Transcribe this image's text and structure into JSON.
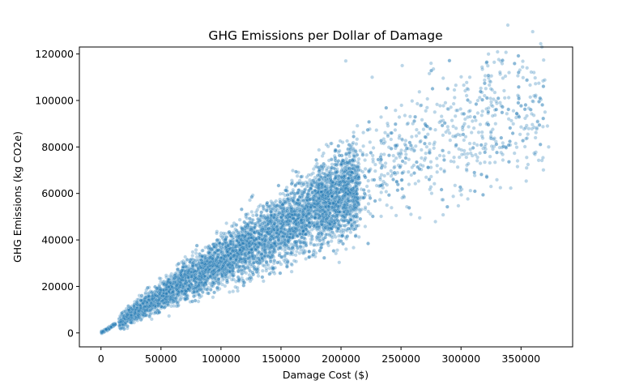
{
  "chart_data": {
    "type": "scatter",
    "title": "GHG Emissions per Dollar of Damage",
    "xlabel": "Damage Cost ($)",
    "ylabel": "GHG Emissions (kg CO2e)",
    "xlim": [
      -18000,
      393000
    ],
    "ylim": [
      -6000,
      123000
    ],
    "xticks": [
      0,
      50000,
      100000,
      150000,
      200000,
      250000,
      300000,
      350000
    ],
    "yticks": [
      0,
      20000,
      40000,
      60000,
      80000,
      100000,
      120000
    ],
    "xtick_labels": [
      "0",
      "50000",
      "100000",
      "150000",
      "200000",
      "250000",
      "300000",
      "350000"
    ],
    "ytick_labels": [
      "0",
      "20000",
      "40000",
      "60000",
      "80000",
      "100000",
      "120000"
    ],
    "grid": false,
    "point_color": "#1f77b4",
    "point_edge_color": "#ffffff",
    "point_alpha": 0.3,
    "series": [
      {
        "trend_points": [
          {
            "x": 0,
            "y": 0
          },
          {
            "x": 50000,
            "y": 16000
          },
          {
            "x": 100000,
            "y": 31000
          },
          {
            "x": 150000,
            "y": 45000
          },
          {
            "x": 200000,
            "y": 60000
          },
          {
            "x": 250000,
            "y": 76000
          },
          {
            "x": 300000,
            "y": 88000
          },
          {
            "x": 350000,
            "y": 98000
          }
        ],
        "outliers": [
          {
            "x": 204000,
            "y": 117000
          },
          {
            "x": 251000,
            "y": 115000
          },
          {
            "x": 275000,
            "y": 116000
          },
          {
            "x": 340000,
            "y": 112000
          },
          {
            "x": 355000,
            "y": 114000
          },
          {
            "x": 370000,
            "y": 95000
          },
          {
            "x": 372000,
            "y": 89000
          },
          {
            "x": 362000,
            "y": 84000
          },
          {
            "x": 373000,
            "y": 80000
          },
          {
            "x": 325000,
            "y": 63000
          },
          {
            "x": 303000,
            "y": 90000
          },
          {
            "x": 314000,
            "y": 100000
          },
          {
            "x": 287000,
            "y": 99000
          },
          {
            "x": 226000,
            "y": 110000
          }
        ]
      }
    ]
  }
}
